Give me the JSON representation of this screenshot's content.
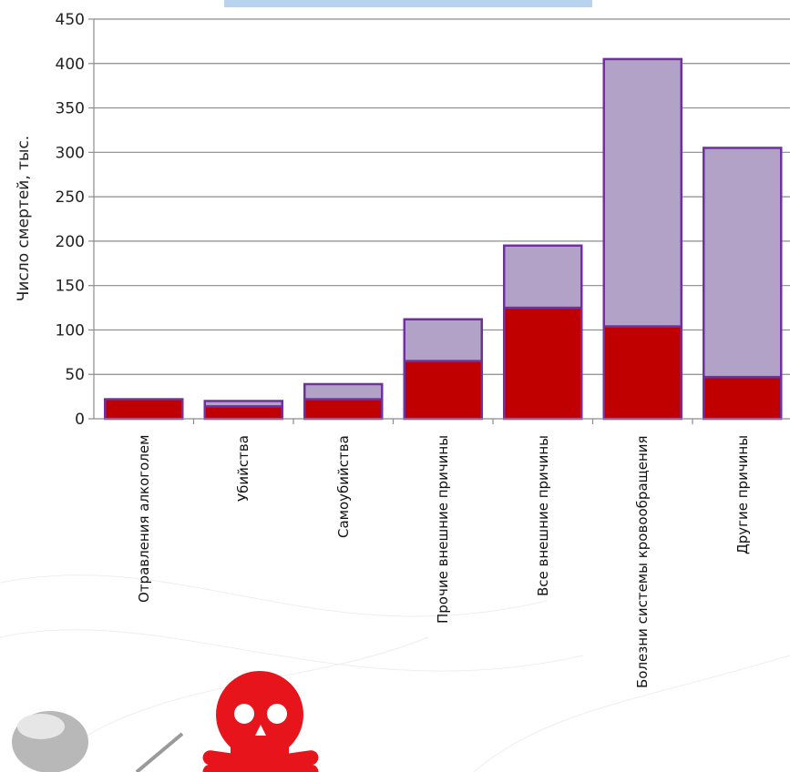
{
  "chart_data": {
    "type": "bar",
    "stacked": true,
    "title": "",
    "xlabel": "",
    "ylabel": "Число смертей, тыс.",
    "ylim": [
      0,
      450
    ],
    "yticks": [
      0,
      50,
      100,
      150,
      200,
      250,
      300,
      350,
      400,
      450
    ],
    "grid": true,
    "legend": "none",
    "categories": [
      "Отравления алкоголем",
      "Убийства",
      "Самоубийства",
      "Прочие внешние причины",
      "Все внешние причины",
      "Болезни системы кровообращения",
      "Другие причины"
    ],
    "series": [
      {
        "values": [
          22,
          14,
          22,
          65,
          125,
          104,
          47
        ],
        "color": "#c00000"
      },
      {
        "values": [
          0,
          6,
          17,
          47,
          70,
          301,
          258
        ],
        "color": "#b3a2c7"
      }
    ],
    "edge_color": "#7030a0"
  },
  "decor": {
    "skull_color": "#e8141c",
    "ball_color": "#b8b8b8"
  }
}
